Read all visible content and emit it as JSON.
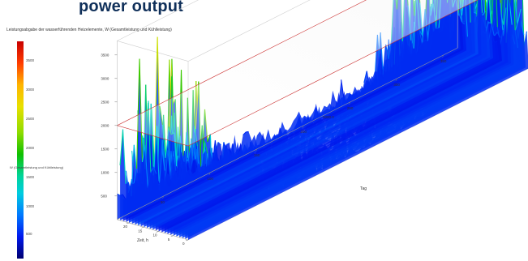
{
  "page": {
    "title": "power output",
    "plot_title": "Leistungsabgabe der wasserführenden Heizelemente, W (Gesamtleistung und Kühlleistung)"
  },
  "colorbar": {
    "label": "W (Gesamtleistung und Kühlleistung)",
    "ticks": [
      "3500",
      "3000",
      "2500",
      "2000",
      "1500",
      "1000",
      "500"
    ]
  },
  "chart_data": {
    "type": "surface3d",
    "x_axis": {
      "label": "Tag",
      "ticks": [
        "50",
        "100",
        "150",
        "200",
        "250",
        "300",
        "350"
      ]
    },
    "y_axis": {
      "label": "Zeit, h",
      "ticks": [
        "0",
        "5",
        "10",
        "15",
        "20"
      ]
    },
    "z_axis": {
      "ticks": [
        "500",
        "1000",
        "1500",
        "2000",
        "2500",
        "3000",
        "3500"
      ],
      "range": [
        0,
        3800
      ]
    },
    "reference_plane": {
      "label": "2000.0",
      "z": 2000
    },
    "profile": {
      "day": [
        1,
        10,
        20,
        30,
        40,
        50,
        60,
        70,
        80,
        90,
        100,
        110,
        120,
        130,
        140,
        150,
        160,
        170,
        180,
        190,
        200,
        210,
        220,
        230,
        240,
        250,
        260,
        270,
        280,
        290,
        300,
        310,
        320,
        330,
        340,
        350,
        360,
        365
      ],
      "peak_w": [
        1800,
        2200,
        3400,
        2400,
        1600,
        1400,
        1100,
        900,
        800,
        700,
        650,
        600,
        550,
        500,
        450,
        400,
        380,
        360,
        350,
        360,
        380,
        400,
        450,
        500,
        550,
        650,
        800,
        1000,
        1300,
        1700,
        2000,
        2400,
        2700,
        3100,
        3500,
        3000,
        2400,
        2200
      ]
    },
    "colorscale": [
      "#000070",
      "#0018ee",
      "#0078ff",
      "#00cce0",
      "#00d49a",
      "#10c000",
      "#8edc00",
      "#e8e000",
      "#ffb400",
      "#ff3c00",
      "#c80000"
    ]
  }
}
